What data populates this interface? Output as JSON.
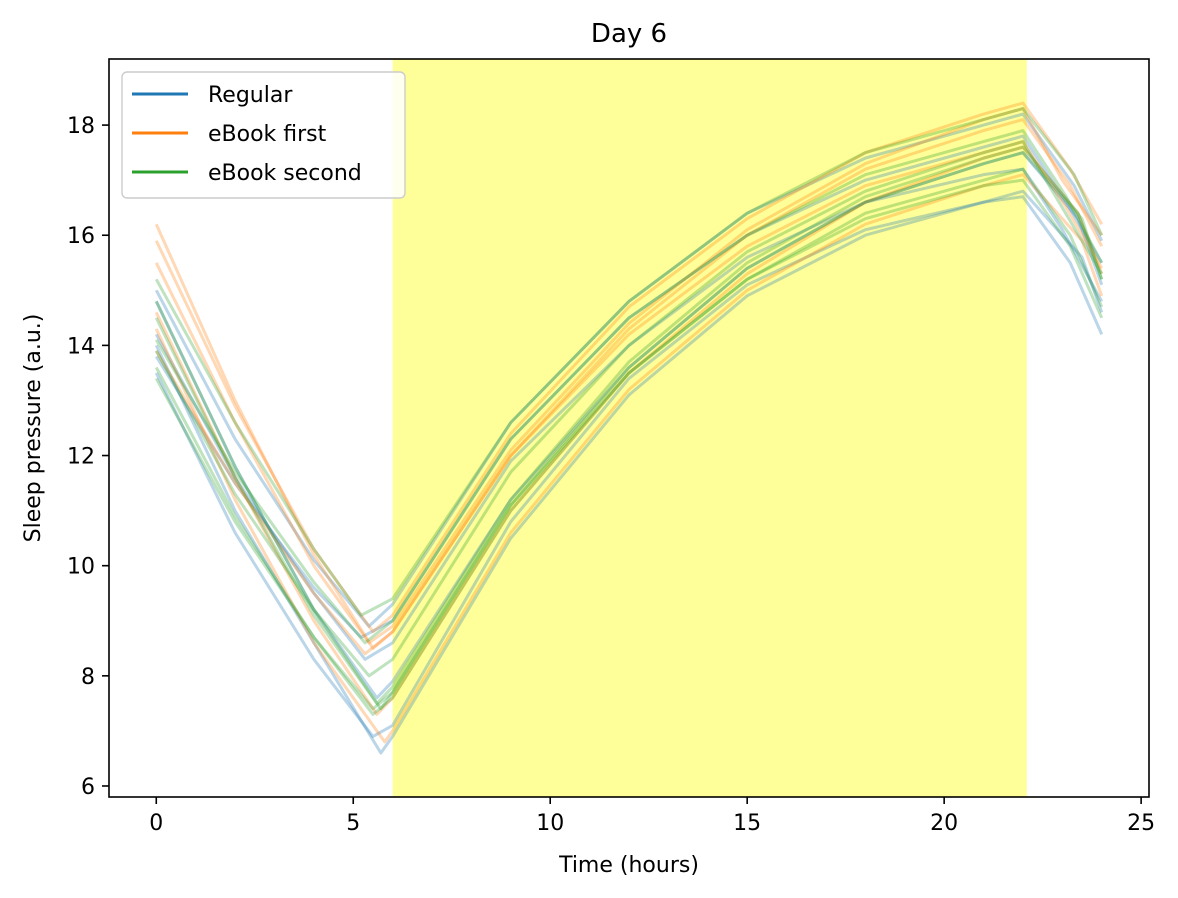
{
  "chart_data": {
    "type": "line",
    "title": "Day 6",
    "xlabel": "Time (hours)",
    "ylabel": "Sleep pressure (a.u.)",
    "xlim": [
      -1.2,
      25.2
    ],
    "ylim": [
      5.8,
      19.2
    ],
    "x_ticks": [
      0,
      5,
      10,
      15,
      20,
      25
    ],
    "y_ticks": [
      6,
      8,
      10,
      12,
      14,
      16,
      18
    ],
    "x_tick_labels": [
      "0",
      "5",
      "10",
      "15",
      "20",
      "25"
    ],
    "y_tick_labels": [
      "6",
      "8",
      "10",
      "12",
      "14",
      "16",
      "18"
    ],
    "grid": false,
    "legend_position": "top-left",
    "shaded_region": {
      "x_start": 6.0,
      "x_end": 22.1,
      "color": "#ffff99"
    },
    "series_colors": {
      "Regular": "#1f77b4",
      "eBook first": "#ff7f0e",
      "eBook second": "#2ca02c"
    },
    "series": [
      {
        "name": "Regular",
        "color": "#1f77b4",
        "trajectories": [
          {
            "x": [
              0,
              2,
              4,
              5.5,
              6,
              9,
              12,
              15,
              18,
              21,
              22,
              23.2,
              24
            ],
            "y": [
              13.5,
              10.6,
              8.3,
              6.9,
              7.1,
              10.8,
              13.4,
              15.1,
              16.1,
              16.6,
              16.7,
              15.5,
              14.2
            ]
          },
          {
            "x": [
              0,
              2,
              4,
              5.3,
              6,
              9,
              12,
              15,
              18,
              21,
              22,
              23.0,
              24
            ],
            "y": [
              14.2,
              11.6,
              9.5,
              8.3,
              8.6,
              11.9,
              14.0,
              15.6,
              16.6,
              17.1,
              17.2,
              16.1,
              14.8
            ]
          },
          {
            "x": [
              0,
              2,
              4,
              5.6,
              6,
              9,
              12,
              15,
              18,
              21,
              22,
              23.4,
              24
            ],
            "y": [
              14.8,
              11.8,
              9.2,
              7.6,
              7.9,
              11.2,
              13.6,
              15.4,
              16.6,
              17.3,
              17.5,
              16.3,
              15.1
            ]
          },
          {
            "x": [
              0,
              2,
              4,
              5.2,
              6,
              9,
              12,
              15,
              18,
              21,
              22,
              23.1,
              24
            ],
            "y": [
              13.8,
              11.5,
              9.6,
              8.7,
              9.0,
              12.3,
              14.5,
              16.0,
              17.0,
              17.6,
              17.8,
              16.6,
              15.5
            ]
          },
          {
            "x": [
              0,
              2,
              4,
              5.7,
              6,
              9,
              12,
              15,
              18,
              21,
              22,
              23.5,
              24
            ],
            "y": [
              14.0,
              11.0,
              8.6,
              6.6,
              6.9,
              10.5,
              13.1,
              14.9,
              16.0,
              16.6,
              16.8,
              15.6,
              14.6
            ]
          },
          {
            "x": [
              0,
              2,
              4,
              5.4,
              6,
              9,
              12,
              15,
              18,
              21,
              22,
              23.3,
              24
            ],
            "y": [
              15.0,
              12.3,
              10.1,
              8.9,
              9.3,
              12.6,
              14.8,
              16.4,
              17.4,
              18.0,
              18.2,
              16.9,
              15.9
            ]
          }
        ]
      },
      {
        "name": "eBook first",
        "color": "#ff7f0e",
        "trajectories": [
          {
            "x": [
              0,
              2,
              4,
              5.5,
              6,
              9,
              12,
              15,
              18,
              21,
              22,
              23.2,
              24
            ],
            "y": [
              16.2,
              13.0,
              10.2,
              8.5,
              8.8,
              12.0,
              14.3,
              16.0,
              17.2,
              17.9,
              18.1,
              16.9,
              15.8
            ]
          },
          {
            "x": [
              0,
              2,
              4,
              5.4,
              6,
              9,
              12,
              15,
              18,
              21,
              22,
              23.0,
              24
            ],
            "y": [
              15.5,
              12.6,
              10.0,
              8.6,
              8.9,
              12.1,
              14.4,
              16.1,
              17.3,
              18.1,
              18.3,
              17.0,
              16.0
            ]
          },
          {
            "x": [
              0,
              2,
              4,
              5.6,
              6,
              9,
              12,
              15,
              18,
              21,
              22,
              23.4,
              24
            ],
            "y": [
              14.6,
              11.6,
              9.0,
              7.3,
              7.6,
              11.0,
              13.5,
              15.3,
              16.6,
              17.4,
              17.6,
              16.4,
              15.3
            ]
          },
          {
            "x": [
              0,
              2,
              4,
              5.3,
              6,
              9,
              12,
              15,
              18,
              21,
              22,
              23.1,
              24
            ],
            "y": [
              13.9,
              11.5,
              9.5,
              8.4,
              8.8,
              12.0,
              14.2,
              15.8,
              16.9,
              17.5,
              17.7,
              16.5,
              15.4
            ]
          },
          {
            "x": [
              0,
              2,
              4,
              5.8,
              6,
              9,
              12,
              15,
              18,
              21,
              22,
              23.5,
              24
            ],
            "y": [
              14.3,
              11.2,
              8.6,
              6.8,
              7.0,
              10.6,
              13.2,
              15.0,
              16.2,
              16.9,
              17.1,
              15.9,
              14.9
            ]
          },
          {
            "x": [
              0,
              2,
              4,
              5.5,
              6,
              9,
              12,
              15,
              18,
              21,
              22,
              23.2,
              24
            ],
            "y": [
              15.9,
              12.9,
              10.3,
              8.8,
              9.1,
              12.4,
              14.7,
              16.3,
              17.5,
              18.2,
              18.4,
              17.2,
              16.2
            ]
          }
        ]
      },
      {
        "name": "eBook second",
        "color": "#2ca02c",
        "trajectories": [
          {
            "x": [
              0,
              2,
              4,
              5.5,
              6,
              9,
              12,
              15,
              18,
              21,
              22,
              23.2,
              24
            ],
            "y": [
              13.6,
              10.9,
              8.7,
              7.3,
              7.6,
              11.0,
              13.5,
              15.2,
              16.3,
              16.9,
              17.0,
              15.8,
              14.5
            ]
          },
          {
            "x": [
              0,
              2,
              4,
              5.3,
              6,
              9,
              12,
              15,
              18,
              21,
              22,
              23.1,
              24
            ],
            "y": [
              14.1,
              11.7,
              9.7,
              8.6,
              9.0,
              12.3,
              14.5,
              16.0,
              17.1,
              17.7,
              17.9,
              16.7,
              15.5
            ]
          },
          {
            "x": [
              0,
              2,
              4,
              5.6,
              6,
              9,
              12,
              15,
              18,
              21,
              22,
              23.4,
              24
            ],
            "y": [
              14.5,
              11.6,
              9.1,
              7.5,
              7.8,
              11.2,
              13.7,
              15.5,
              16.7,
              17.4,
              17.6,
              16.4,
              15.2
            ]
          },
          {
            "x": [
              0,
              2,
              4,
              5.4,
              6,
              9,
              12,
              15,
              18,
              21,
              22,
              23.0,
              24
            ],
            "y": [
              13.9,
              11.3,
              9.2,
              8.0,
              8.3,
              11.7,
              14.0,
              15.7,
              16.8,
              17.5,
              17.7,
              16.5,
              15.3
            ]
          },
          {
            "x": [
              0,
              2,
              4,
              5.7,
              6,
              9,
              12,
              15,
              18,
              21,
              22,
              23.5,
              24
            ],
            "y": [
              14.8,
              11.8,
              9.2,
              7.4,
              7.7,
              11.1,
              13.6,
              15.4,
              16.6,
              17.3,
              17.5,
              16.3,
              15.2
            ]
          },
          {
            "x": [
              0,
              2,
              4,
              5.2,
              6,
              9,
              12,
              15,
              18,
              21,
              22,
              23.3,
              24
            ],
            "y": [
              15.2,
              12.6,
              10.3,
              9.1,
              9.4,
              12.6,
              14.8,
              16.4,
              17.5,
              18.1,
              18.3,
              17.1,
              16.0
            ]
          },
          {
            "x": [
              0,
              2,
              4,
              5.5,
              6,
              9,
              12,
              15,
              18,
              21,
              22,
              23.2,
              24
            ],
            "y": [
              13.4,
              10.8,
              8.7,
              7.4,
              7.7,
              11.1,
              13.5,
              15.2,
              16.4,
              17.0,
              17.2,
              16.0,
              14.7
            ]
          }
        ]
      }
    ]
  }
}
